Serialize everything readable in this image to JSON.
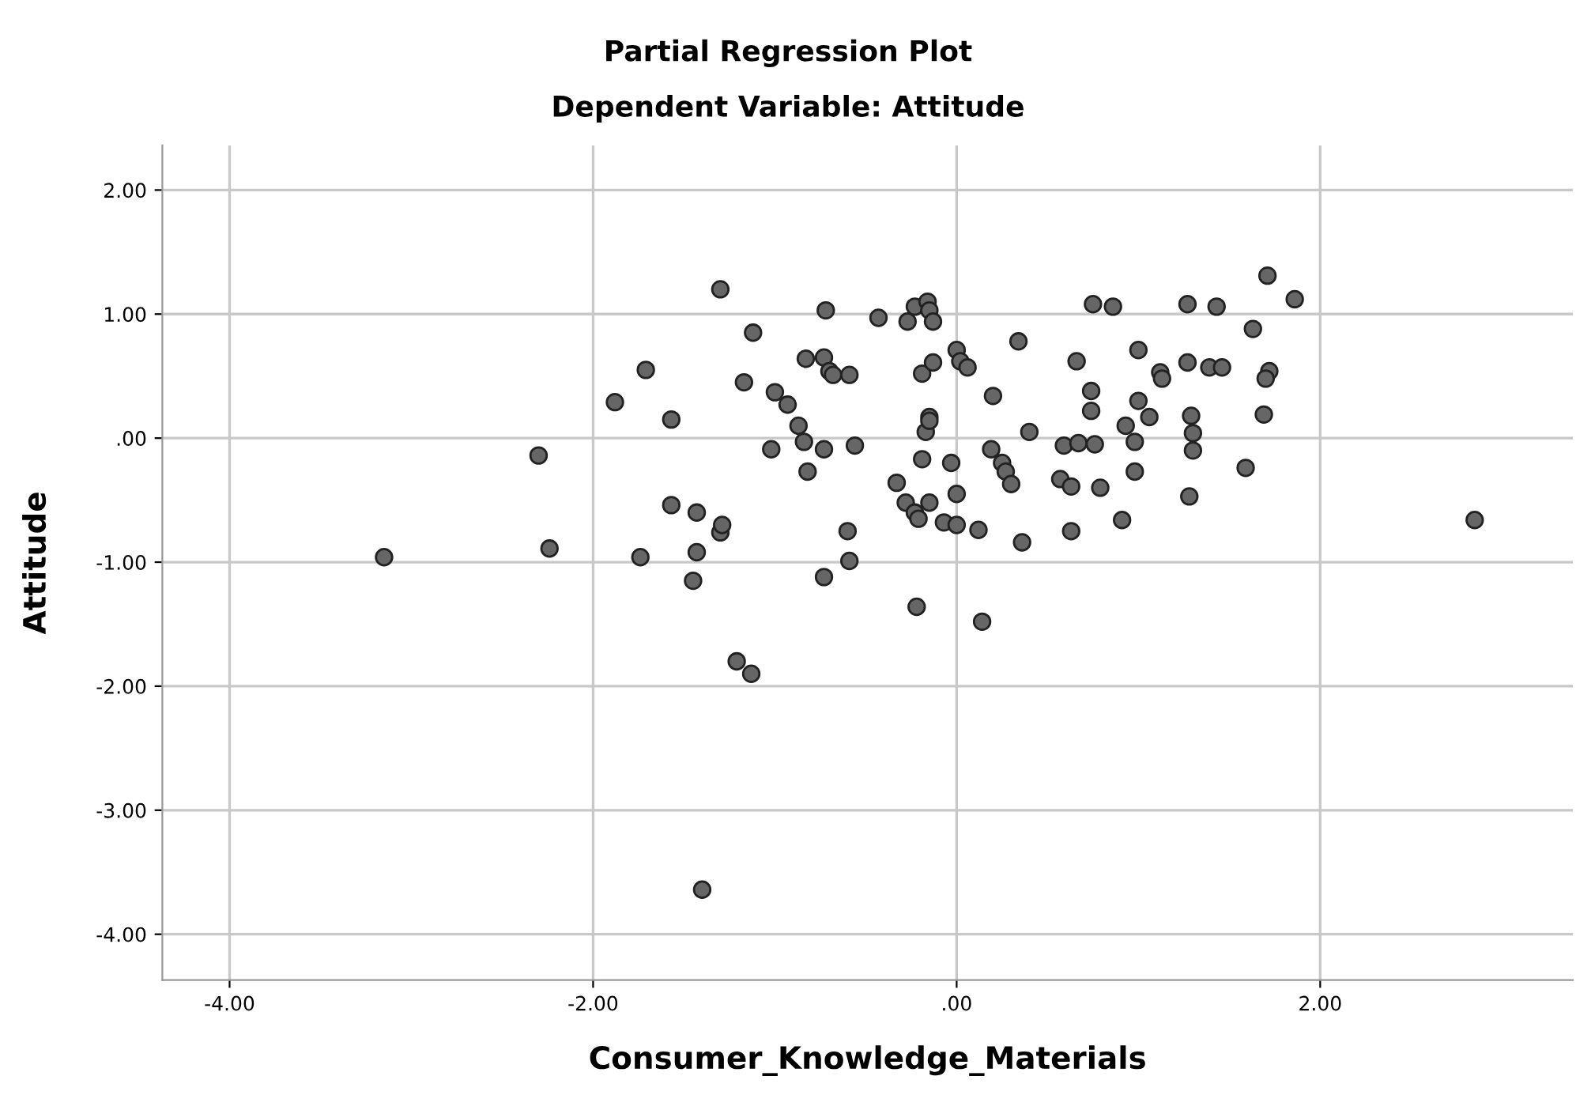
{
  "chart_data": {
    "type": "scatter",
    "title": "Partial Regression Plot",
    "subtitle": "Dependent Variable: Attitude",
    "xlabel": "Consumer_Knowledge_Materials",
    "ylabel": "Attitude",
    "x": [
      -3.15,
      -2.3,
      -2.24,
      -1.88,
      -1.74,
      -1.71,
      -1.57,
      -1.57,
      -1.43,
      -1.43,
      -1.45,
      -1.4,
      -1.3,
      -1.3,
      -1.29,
      -1.21,
      -1.13,
      -1.17,
      -1.12,
      -1.02,
      -1.0,
      -0.93,
      -0.87,
      -0.84,
      -0.83,
      -0.82,
      -0.73,
      -0.73,
      -0.73,
      -0.72,
      -0.7,
      -0.68,
      -0.6,
      -0.59,
      -0.59,
      -0.56,
      -0.43,
      -0.33,
      -0.28,
      -0.27,
      -0.23,
      -0.23,
      -0.22,
      -0.21,
      -0.19,
      -0.19,
      -0.17,
      -0.16,
      -0.15,
      -0.15,
      -0.15,
      -0.15,
      -0.13,
      -0.13,
      -0.07,
      -0.03,
      0.0,
      0.0,
      0.0,
      0.02,
      0.06,
      0.12,
      0.14,
      0.19,
      0.2,
      0.25,
      0.27,
      0.3,
      0.34,
      0.36,
      0.4,
      0.75,
      0.86,
      0.66,
      0.74,
      0.74,
      0.59,
      0.67,
      0.76,
      0.57,
      0.63,
      0.79,
      0.63,
      0.91,
      0.93,
      0.98,
      0.98,
      1.0,
      1.0,
      1.06,
      1.12,
      1.13,
      1.27,
      1.27,
      1.29,
      1.3,
      1.3,
      1.28,
      1.39,
      1.46,
      1.43,
      1.59,
      1.63,
      1.69,
      1.71,
      1.72,
      1.7,
      1.86,
      2.85
    ],
    "values": [
      -0.96,
      -0.14,
      -0.89,
      0.29,
      -0.96,
      0.55,
      0.15,
      -0.54,
      -0.6,
      -0.92,
      -1.15,
      -3.64,
      1.2,
      -0.76,
      -0.7,
      -1.8,
      -1.9,
      0.45,
      0.85,
      -0.09,
      0.37,
      0.27,
      0.1,
      -0.03,
      0.64,
      -0.27,
      -0.09,
      0.65,
      -1.12,
      1.03,
      0.54,
      0.51,
      -0.75,
      0.51,
      -0.99,
      -0.06,
      0.97,
      -0.36,
      -0.52,
      0.94,
      -0.6,
      1.06,
      -1.36,
      -0.65,
      -0.17,
      0.52,
      0.05,
      1.1,
      1.03,
      -0.52,
      0.17,
      0.14,
      0.94,
      0.61,
      -0.68,
      -0.2,
      0.71,
      -0.45,
      -0.7,
      0.62,
      0.57,
      -0.74,
      -1.48,
      -0.09,
      0.34,
      -0.2,
      -0.27,
      -0.37,
      0.78,
      -0.84,
      0.05,
      1.08,
      1.06,
      0.62,
      0.38,
      0.22,
      -0.06,
      -0.04,
      -0.05,
      -0.33,
      -0.39,
      -0.4,
      -0.75,
      -0.66,
      0.1,
      -0.03,
      -0.27,
      0.71,
      0.3,
      0.17,
      0.53,
      0.48,
      1.08,
      0.61,
      0.18,
      0.04,
      -0.1,
      -0.47,
      0.57,
      0.57,
      1.06,
      -0.24,
      0.88,
      0.19,
      1.31,
      0.54,
      0.48,
      1.12,
      -0.66
    ],
    "color": "#666666",
    "marker": "circle",
    "grid": true,
    "xlim": [
      -4.37,
      3.39
    ],
    "xticks": [
      {
        "value": -4,
        "label": "-4.00"
      },
      {
        "value": -2,
        "label": "-2.00"
      },
      {
        "value": 0,
        "label": ".00"
      },
      {
        "value": 2,
        "label": "2.00"
      }
    ],
    "ylim": [
      -4.37,
      2.36
    ],
    "yticks": [
      {
        "value": -4,
        "label": "-4.00"
      },
      {
        "value": -3,
        "label": "-3.00"
      },
      {
        "value": -2,
        "label": "-2.00"
      },
      {
        "value": -1,
        "label": "-1.00"
      },
      {
        "value": 0,
        "label": ".00"
      },
      {
        "value": 1,
        "label": "1.00"
      },
      {
        "value": 2,
        "label": "2.00"
      }
    ]
  }
}
